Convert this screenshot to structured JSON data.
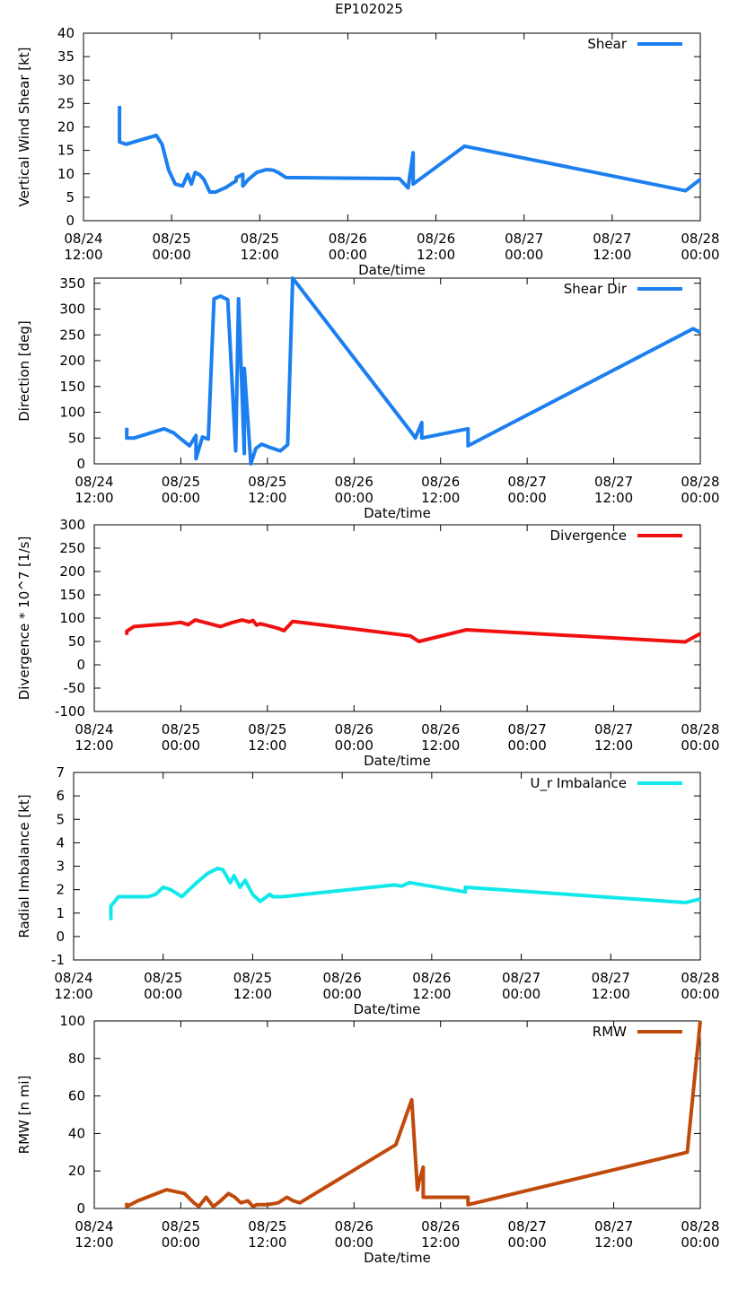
{
  "figure_title": "EP102025",
  "chart_data": [
    {
      "type": "line",
      "ylabel": "Vertical Wind Shear [kt]",
      "xlabel": "Date/time",
      "ylim": [
        0,
        40
      ],
      "yticks": [
        0,
        5,
        10,
        15,
        20,
        25,
        30,
        35,
        40
      ],
      "xlim": [
        0,
        84
      ],
      "xticks": [
        {
          "x": 0,
          "date": "08/24",
          "time": "12:00"
        },
        {
          "x": 12,
          "date": "08/25",
          "time": "00:00"
        },
        {
          "x": 24,
          "date": "08/25",
          "time": "12:00"
        },
        {
          "x": 36,
          "date": "08/26",
          "time": "00:00"
        },
        {
          "x": 48,
          "date": "08/26",
          "time": "12:00"
        },
        {
          "x": 60,
          "date": "08/27",
          "time": "00:00"
        },
        {
          "x": 72,
          "date": "08/27",
          "time": "12:00"
        },
        {
          "x": 84,
          "date": "08/28",
          "time": "00:00"
        }
      ],
      "series": [
        {
          "name": "Shear",
          "color": "#1c7ff0",
          "x": [
            4.9,
            4.9,
            5.8,
            9.9,
            10.7,
            11.6,
            12.5,
            13.5,
            14.2,
            14.7,
            15.2,
            15.8,
            16.4,
            17.2,
            18.0,
            19.4,
            20.8,
            20.8,
            21.7,
            21.7,
            22.4,
            23.6,
            24.9,
            25.8,
            26.5,
            27.6,
            43.0,
            44.2,
            44.9,
            44.9,
            51.9,
            82.0,
            84.0
          ],
          "y": [
            24.5,
            16.8,
            16.3,
            18.2,
            16.3,
            10.8,
            7.8,
            7.4,
            9.9,
            7.8,
            10.3,
            9.8,
            8.8,
            6.1,
            6.1,
            7.1,
            8.5,
            9.2,
            9.9,
            7.4,
            8.7,
            10.3,
            10.9,
            10.8,
            10.3,
            9.2,
            9.0,
            7.0,
            14.5,
            7.8,
            15.9,
            6.4,
            8.8
          ]
        }
      ]
    },
    {
      "type": "line",
      "ylabel": "Direction [deg]",
      "xlabel": "Date/time",
      "ylim": [
        0,
        360
      ],
      "yticks": [
        0,
        50,
        100,
        150,
        200,
        250,
        300,
        350
      ],
      "xlim": [
        0,
        84
      ],
      "xticks": [
        {
          "x": 0,
          "date": "08/24",
          "time": "12:00"
        },
        {
          "x": 12,
          "date": "08/25",
          "time": "00:00"
        },
        {
          "x": 24,
          "date": "08/25",
          "time": "12:00"
        },
        {
          "x": 36,
          "date": "08/26",
          "time": "00:00"
        },
        {
          "x": 48,
          "date": "08/26",
          "time": "12:00"
        },
        {
          "x": 60,
          "date": "08/27",
          "time": "00:00"
        },
        {
          "x": 72,
          "date": "08/27",
          "time": "12:00"
        },
        {
          "x": 84,
          "date": "08/28",
          "time": "00:00"
        }
      ],
      "series": [
        {
          "name": "Shear Dir",
          "color": "#1c7ff0",
          "x": [
            4.5,
            4.5,
            5.5,
            9.7,
            11.0,
            12.3,
            13.2,
            14.1,
            14.1,
            15.0,
            15.8,
            16.6,
            17.5,
            18.5,
            19.6,
            20.0,
            20.8,
            20.8,
            21.7,
            22.4,
            23.2,
            24.3,
            25.8,
            26.8,
            27.5,
            44.0,
            44.5,
            45.4,
            45.4,
            51.8,
            51.8,
            83.0,
            84.0
          ],
          "y": [
            70,
            50,
            50,
            68,
            60,
            45,
            35,
            55,
            10,
            52,
            48,
            320,
            325,
            318,
            25,
            320,
            20,
            185,
            0,
            30,
            38,
            32,
            25,
            37,
            360,
            60,
            50,
            80,
            50,
            68,
            35,
            262,
            255
          ]
        }
      ]
    },
    {
      "type": "line",
      "ylabel": "Divergence * 10^7 [1/s]",
      "xlabel": "Date/time",
      "ylim": [
        -100,
        300
      ],
      "yticks": [
        -100,
        -50,
        0,
        50,
        100,
        150,
        200,
        250,
        300
      ],
      "xlim": [
        0,
        84
      ],
      "xticks": [
        {
          "x": 0,
          "date": "08/24",
          "time": "12:00"
        },
        {
          "x": 12,
          "date": "08/25",
          "time": "00:00"
        },
        {
          "x": 24,
          "date": "08/25",
          "time": "12:00"
        },
        {
          "x": 36,
          "date": "08/26",
          "time": "00:00"
        },
        {
          "x": 48,
          "date": "08/26",
          "time": "12:00"
        },
        {
          "x": 60,
          "date": "08/27",
          "time": "00:00"
        },
        {
          "x": 72,
          "date": "08/27",
          "time": "12:00"
        },
        {
          "x": 84,
          "date": "08/28",
          "time": "00:00"
        }
      ],
      "series": [
        {
          "name": "Divergence",
          "color": "#f01010",
          "x": [
            4.5,
            4.5,
            5.5,
            8.0,
            10.5,
            12.0,
            13.0,
            14.0,
            15.5,
            17.5,
            19.0,
            20.5,
            21.5,
            22.0,
            22.5,
            23.0,
            24.3,
            25.5,
            26.3,
            27.5,
            43.8,
            45.0,
            51.6,
            81.9,
            84.0
          ],
          "y": [
            64,
            72,
            82,
            85,
            88,
            91,
            86,
            96,
            90,
            82,
            90,
            96,
            92,
            95,
            85,
            88,
            83,
            78,
            73,
            93,
            62,
            50,
            75,
            49,
            67
          ]
        }
      ]
    },
    {
      "type": "line",
      "ylabel": "Radial Imbalance [kt]",
      "xlabel": "Date/time",
      "ylim": [
        -1,
        7
      ],
      "yticks": [
        -1,
        0,
        1,
        2,
        3,
        4,
        5,
        6,
        7
      ],
      "xlim": [
        0,
        84
      ],
      "xticks": [
        {
          "x": 0,
          "date": "08/24",
          "time": "12:00"
        },
        {
          "x": 12,
          "date": "08/25",
          "time": "00:00"
        },
        {
          "x": 24,
          "date": "08/25",
          "time": "12:00"
        },
        {
          "x": 36,
          "date": "08/26",
          "time": "00:00"
        },
        {
          "x": 48,
          "date": "08/26",
          "time": "12:00"
        },
        {
          "x": 60,
          "date": "08/27",
          "time": "00:00"
        },
        {
          "x": 72,
          "date": "08/27",
          "time": "12:00"
        },
        {
          "x": 84,
          "date": "08/28",
          "time": "00:00"
        }
      ],
      "series": [
        {
          "name": "U_r Imbalance",
          "color": "#10e8ea",
          "x": [
            5.0,
            5.0,
            6.0,
            10.0,
            11.0,
            12.0,
            13.0,
            14.5,
            15.5,
            16.5,
            18.0,
            19.3,
            20.0,
            21.0,
            21.5,
            22.3,
            23.0,
            24.0,
            25.0,
            26.3,
            26.7,
            28.0,
            43.0,
            44.0,
            45.0,
            52.5,
            52.5,
            82.0,
            84.0
          ],
          "y": [
            0.7,
            1.3,
            1.7,
            1.7,
            1.8,
            2.1,
            2.0,
            1.7,
            2.0,
            2.3,
            2.7,
            2.9,
            2.85,
            2.3,
            2.6,
            2.1,
            2.4,
            1.8,
            1.5,
            1.8,
            1.7,
            1.7,
            2.2,
            2.15,
            2.3,
            1.9,
            2.1,
            1.45,
            1.6
          ]
        }
      ]
    },
    {
      "type": "line",
      "ylabel": "RMW [n mi]",
      "xlabel": "Date/time",
      "ylim": [
        0,
        100
      ],
      "yticks": [
        0,
        20,
        40,
        60,
        80,
        100
      ],
      "xlim": [
        0,
        84
      ],
      "xticks": [
        {
          "x": 0,
          "date": "08/24",
          "time": "12:00"
        },
        {
          "x": 12,
          "date": "08/25",
          "time": "00:00"
        },
        {
          "x": 24,
          "date": "08/25",
          "time": "12:00"
        },
        {
          "x": 36,
          "date": "08/26",
          "time": "00:00"
        },
        {
          "x": 48,
          "date": "08/26",
          "time": "12:00"
        },
        {
          "x": 60,
          "date": "08/27",
          "time": "00:00"
        },
        {
          "x": 72,
          "date": "08/27",
          "time": "12:00"
        },
        {
          "x": 84,
          "date": "08/28",
          "time": "00:00"
        }
      ],
      "series": [
        {
          "name": "RMW",
          "color": "#c04a0c",
          "x": [
            4.5,
            4.5,
            6.0,
            10.0,
            12.5,
            13.8,
            14.5,
            15.5,
            16.5,
            17.5,
            18.6,
            19.5,
            20.3,
            21.3,
            22.0,
            22.5,
            24.0,
            25.5,
            26.7,
            27.6,
            28.5,
            41.8,
            44.0,
            44.8,
            45.0,
            45.6,
            45.6,
            51.8,
            51.8,
            82.2,
            84.0
          ],
          "y": [
            3,
            1,
            4,
            10,
            8,
            3,
            1,
            6,
            1,
            4,
            8,
            6,
            3,
            4,
            1,
            2,
            2,
            3,
            6,
            4,
            3,
            34,
            58,
            10,
            14,
            22,
            6,
            6,
            2,
            30,
            100
          ]
        }
      ]
    }
  ]
}
